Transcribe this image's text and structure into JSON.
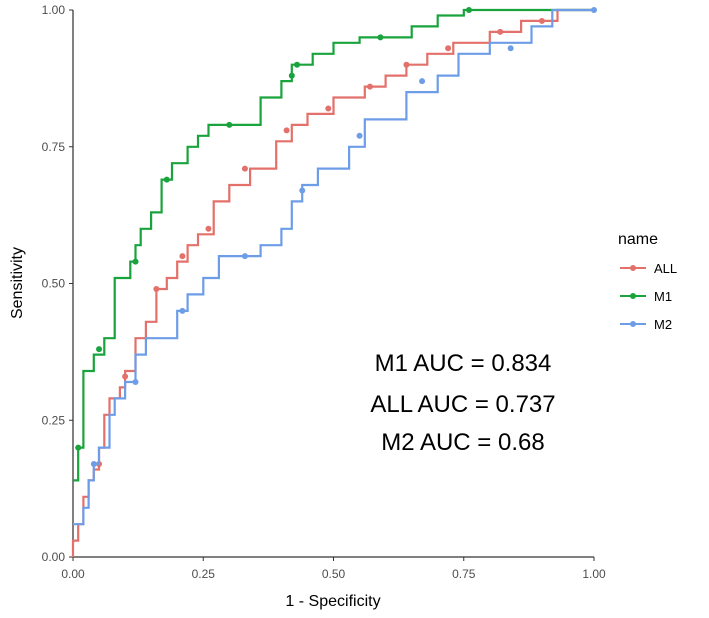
{
  "chart_data": {
    "type": "line",
    "title": "",
    "xlabel": "1 - Specificity",
    "ylabel": "Sensitivity",
    "xlim": [
      0,
      1
    ],
    "ylim": [
      0,
      1
    ],
    "x_ticks": [
      0,
      0.25,
      0.5,
      0.75,
      1
    ],
    "x_tick_labels": [
      "0.00",
      "0.25",
      "0.50",
      "0.75",
      "1.00"
    ],
    "y_ticks": [
      0,
      0.25,
      0.5,
      0.75,
      1
    ],
    "y_tick_labels": [
      "0.00",
      "0.25",
      "0.50",
      "0.75",
      "1.00"
    ],
    "grid": false,
    "legend": {
      "title": "name",
      "position": "right",
      "entries": [
        "ALL",
        "M1",
        "M2"
      ]
    },
    "annotations": [
      "M1  AUC = 0.834",
      "ALL  AUC = 0.737",
      "M2  AUC = 0.68"
    ],
    "series": [
      {
        "name": "ALL",
        "color": "#e3706a",
        "points": [
          [
            0,
            0
          ],
          [
            0,
            0.03
          ],
          [
            0.01,
            0.03
          ],
          [
            0.01,
            0.06
          ],
          [
            0.02,
            0.06
          ],
          [
            0.02,
            0.11
          ],
          [
            0.03,
            0.11
          ],
          [
            0.03,
            0.14
          ],
          [
            0.04,
            0.14
          ],
          [
            0.04,
            0.16
          ],
          [
            0.05,
            0.16
          ],
          [
            0.05,
            0.2
          ],
          [
            0.06,
            0.2
          ],
          [
            0.06,
            0.26
          ],
          [
            0.07,
            0.26
          ],
          [
            0.07,
            0.29
          ],
          [
            0.09,
            0.29
          ],
          [
            0.09,
            0.31
          ],
          [
            0.1,
            0.31
          ],
          [
            0.1,
            0.34
          ],
          [
            0.12,
            0.34
          ],
          [
            0.12,
            0.4
          ],
          [
            0.14,
            0.4
          ],
          [
            0.14,
            0.43
          ],
          [
            0.16,
            0.43
          ],
          [
            0.16,
            0.49
          ],
          [
            0.18,
            0.49
          ],
          [
            0.18,
            0.51
          ],
          [
            0.2,
            0.51
          ],
          [
            0.2,
            0.54
          ],
          [
            0.22,
            0.54
          ],
          [
            0.22,
            0.57
          ],
          [
            0.24,
            0.57
          ],
          [
            0.24,
            0.59
          ],
          [
            0.27,
            0.59
          ],
          [
            0.27,
            0.65
          ],
          [
            0.3,
            0.65
          ],
          [
            0.3,
            0.68
          ],
          [
            0.34,
            0.68
          ],
          [
            0.34,
            0.71
          ],
          [
            0.39,
            0.71
          ],
          [
            0.39,
            0.76
          ],
          [
            0.42,
            0.76
          ],
          [
            0.42,
            0.79
          ],
          [
            0.45,
            0.79
          ],
          [
            0.45,
            0.81
          ],
          [
            0.5,
            0.81
          ],
          [
            0.5,
            0.84
          ],
          [
            0.56,
            0.84
          ],
          [
            0.56,
            0.86
          ],
          [
            0.6,
            0.86
          ],
          [
            0.6,
            0.88
          ],
          [
            0.64,
            0.88
          ],
          [
            0.64,
            0.9
          ],
          [
            0.68,
            0.9
          ],
          [
            0.68,
            0.92
          ],
          [
            0.73,
            0.92
          ],
          [
            0.73,
            0.94
          ],
          [
            0.8,
            0.94
          ],
          [
            0.8,
            0.96
          ],
          [
            0.86,
            0.96
          ],
          [
            0.86,
            0.98
          ],
          [
            0.93,
            0.98
          ],
          [
            0.93,
            1
          ],
          [
            1,
            1
          ]
        ],
        "markers": [
          [
            0.05,
            0.17
          ],
          [
            0.1,
            0.33
          ],
          [
            0.16,
            0.49
          ],
          [
            0.21,
            0.55
          ],
          [
            0.26,
            0.6
          ],
          [
            0.33,
            0.71
          ],
          [
            0.41,
            0.78
          ],
          [
            0.49,
            0.82
          ],
          [
            0.57,
            0.86
          ],
          [
            0.64,
            0.9
          ],
          [
            0.72,
            0.93
          ],
          [
            0.82,
            0.96
          ],
          [
            0.9,
            0.98
          ]
        ]
      },
      {
        "name": "M1",
        "color": "#19a33c",
        "points": [
          [
            0,
            0.14
          ],
          [
            0.01,
            0.14
          ],
          [
            0.01,
            0.2
          ],
          [
            0.02,
            0.2
          ],
          [
            0.02,
            0.34
          ],
          [
            0.04,
            0.34
          ],
          [
            0.04,
            0.37
          ],
          [
            0.06,
            0.37
          ],
          [
            0.06,
            0.4
          ],
          [
            0.08,
            0.4
          ],
          [
            0.08,
            0.51
          ],
          [
            0.11,
            0.51
          ],
          [
            0.11,
            0.54
          ],
          [
            0.12,
            0.54
          ],
          [
            0.12,
            0.57
          ],
          [
            0.13,
            0.57
          ],
          [
            0.13,
            0.6
          ],
          [
            0.15,
            0.6
          ],
          [
            0.15,
            0.63
          ],
          [
            0.17,
            0.63
          ],
          [
            0.17,
            0.69
          ],
          [
            0.19,
            0.69
          ],
          [
            0.19,
            0.72
          ],
          [
            0.22,
            0.72
          ],
          [
            0.22,
            0.75
          ],
          [
            0.24,
            0.75
          ],
          [
            0.24,
            0.77
          ],
          [
            0.26,
            0.77
          ],
          [
            0.26,
            0.79
          ],
          [
            0.36,
            0.79
          ],
          [
            0.36,
            0.84
          ],
          [
            0.4,
            0.84
          ],
          [
            0.4,
            0.87
          ],
          [
            0.42,
            0.87
          ],
          [
            0.42,
            0.9
          ],
          [
            0.46,
            0.9
          ],
          [
            0.46,
            0.92
          ],
          [
            0.5,
            0.92
          ],
          [
            0.5,
            0.94
          ],
          [
            0.55,
            0.94
          ],
          [
            0.55,
            0.95
          ],
          [
            0.65,
            0.95
          ],
          [
            0.65,
            0.97
          ],
          [
            0.7,
            0.97
          ],
          [
            0.7,
            0.99
          ],
          [
            0.75,
            0.99
          ],
          [
            0.75,
            1
          ],
          [
            1,
            1
          ]
        ],
        "markers": [
          [
            0.01,
            0.2
          ],
          [
            0.05,
            0.38
          ],
          [
            0.12,
            0.54
          ],
          [
            0.18,
            0.69
          ],
          [
            0.3,
            0.79
          ],
          [
            0.42,
            0.88
          ],
          [
            0.43,
            0.9
          ],
          [
            0.59,
            0.95
          ],
          [
            0.76,
            1
          ]
        ]
      },
      {
        "name": "M2",
        "color": "#6e9de8",
        "points": [
          [
            0,
            0.06
          ],
          [
            0.02,
            0.06
          ],
          [
            0.02,
            0.09
          ],
          [
            0.03,
            0.09
          ],
          [
            0.03,
            0.14
          ],
          [
            0.04,
            0.14
          ],
          [
            0.04,
            0.17
          ],
          [
            0.05,
            0.17
          ],
          [
            0.05,
            0.2
          ],
          [
            0.07,
            0.2
          ],
          [
            0.07,
            0.26
          ],
          [
            0.08,
            0.26
          ],
          [
            0.08,
            0.29
          ],
          [
            0.1,
            0.29
          ],
          [
            0.1,
            0.32
          ],
          [
            0.12,
            0.32
          ],
          [
            0.12,
            0.37
          ],
          [
            0.14,
            0.37
          ],
          [
            0.14,
            0.4
          ],
          [
            0.2,
            0.4
          ],
          [
            0.2,
            0.45
          ],
          [
            0.22,
            0.45
          ],
          [
            0.22,
            0.48
          ],
          [
            0.25,
            0.48
          ],
          [
            0.25,
            0.51
          ],
          [
            0.28,
            0.51
          ],
          [
            0.28,
            0.55
          ],
          [
            0.36,
            0.55
          ],
          [
            0.36,
            0.57
          ],
          [
            0.4,
            0.57
          ],
          [
            0.4,
            0.6
          ],
          [
            0.42,
            0.6
          ],
          [
            0.42,
            0.65
          ],
          [
            0.44,
            0.65
          ],
          [
            0.44,
            0.68
          ],
          [
            0.47,
            0.68
          ],
          [
            0.47,
            0.71
          ],
          [
            0.53,
            0.71
          ],
          [
            0.53,
            0.75
          ],
          [
            0.56,
            0.75
          ],
          [
            0.56,
            0.8
          ],
          [
            0.64,
            0.8
          ],
          [
            0.64,
            0.85
          ],
          [
            0.7,
            0.85
          ],
          [
            0.7,
            0.88
          ],
          [
            0.74,
            0.88
          ],
          [
            0.74,
            0.92
          ],
          [
            0.8,
            0.92
          ],
          [
            0.8,
            0.94
          ],
          [
            0.88,
            0.94
          ],
          [
            0.88,
            0.97
          ],
          [
            0.92,
            0.97
          ],
          [
            0.92,
            1
          ],
          [
            1,
            1
          ]
        ],
        "markers": [
          [
            0.04,
            0.17
          ],
          [
            0.12,
            0.32
          ],
          [
            0.21,
            0.45
          ],
          [
            0.33,
            0.55
          ],
          [
            0.44,
            0.67
          ],
          [
            0.55,
            0.77
          ],
          [
            0.67,
            0.87
          ],
          [
            0.84,
            0.93
          ],
          [
            1,
            1
          ]
        ]
      }
    ]
  }
}
